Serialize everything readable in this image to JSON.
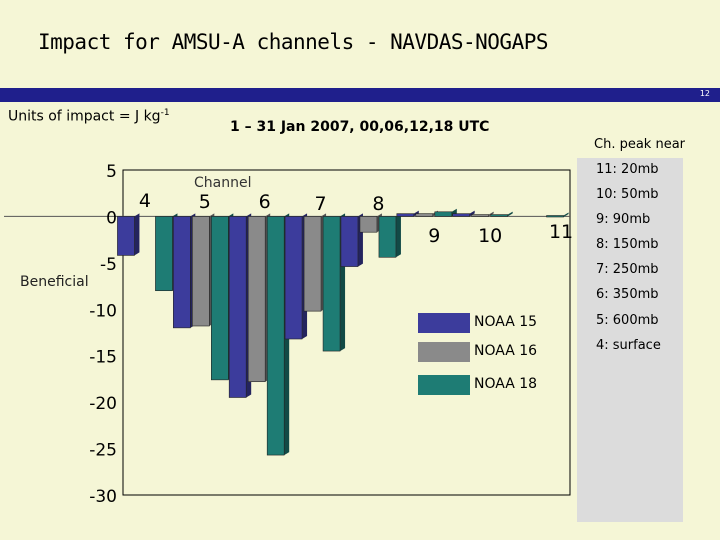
{
  "header": {
    "title": "Impact for AMSU-A channels  - NAVDAS-NOGAPS",
    "slide_number": "12",
    "units_label": "Units of impact = J kg",
    "units_exp": "-1",
    "date_range": "1 – 31 Jan 2007,  00,06,12,18 UTC"
  },
  "side_panel": {
    "heading": "Ch. peak near",
    "items": [
      "11: 20mb",
      "10: 50mb",
      "9:   90mb",
      "8: 150mb",
      "7: 250mb",
      "6: 350mb",
      "5: 600mb",
      "4: surface"
    ]
  },
  "chart_data": {
    "type": "bar",
    "categories": [
      "4",
      "5",
      "6",
      "7",
      "8",
      "9",
      "10",
      "11"
    ],
    "series": [
      {
        "name": "NOAA 15",
        "color": "#3c3c9c",
        "values": [
          -4.2,
          -12.0,
          -19.5,
          -13.2,
          -5.4,
          0.3,
          0.3,
          0
        ]
      },
      {
        "name": "NOAA 16",
        "color": "#8a8a8a",
        "values": [
          0,
          -11.8,
          -17.8,
          -10.2,
          -1.7,
          0.3,
          0.2,
          0
        ]
      },
      {
        "name": "NOAA 18",
        "color": "#1e7c74",
        "values": [
          -8.0,
          -17.6,
          -25.7,
          -14.5,
          -4.4,
          0.5,
          0.2,
          0.1
        ]
      }
    ],
    "ylim": [
      -30,
      5
    ],
    "yticks": [
      5,
      0,
      -5,
      -10,
      -15,
      -20,
      -25,
      -30
    ],
    "annotations": {
      "channel_label": "Channel",
      "beneficial_label": "Beneficial"
    }
  }
}
